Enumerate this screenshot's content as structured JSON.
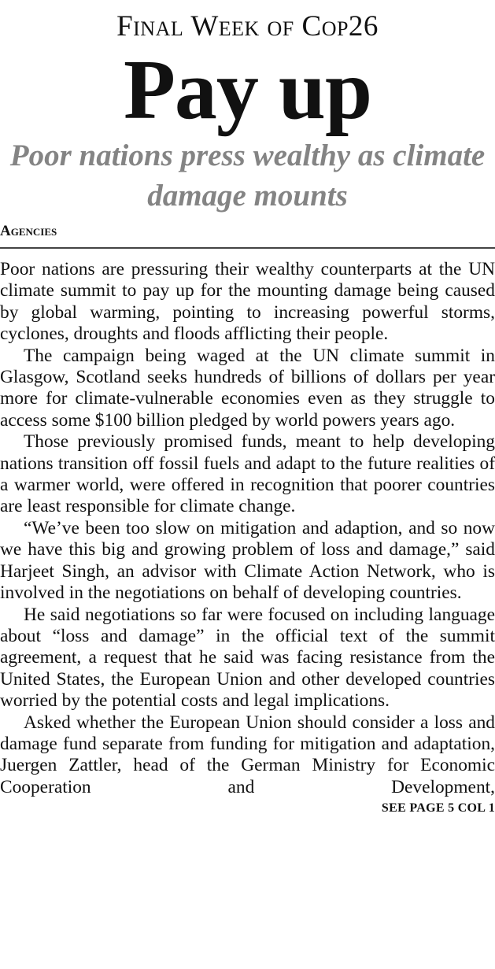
{
  "kicker": "Final Week of Cop26",
  "headline": "Pay up",
  "deck": "Poor nations press wealthy as climate damage mounts",
  "byline": "Agencies",
  "paragraphs": [
    "Poor nations are pressuring their wealthy counterparts at the UN climate summit to pay up for the mounting damage being caused by global warming, pointing to increasing powerful storms, cyclones, droughts and floods afflicting their people.",
    "The campaign being waged at the UN climate summit in Glasgow, Scotland seeks hundreds of billions of dollars per year more for climate-vulnerable economies even as they struggle to access some $100 billion pledged by world powers years ago.",
    "Those previously promised funds, meant to help developing nations transition off fossil fuels and adapt to the future realities of a warmer world, were offered in recognition that poorer countries are least responsible for climate change.",
    "“We’ve been too slow on mitigation and adaption, and so now we have this big and growing problem of loss and damage,” said Harjeet Singh, an advisor with Climate Action Network, who is involved in the negotiations on behalf of developing countries.",
    "He said negotiations so far were focused on including language about “loss and damage” in the official text of the summit agreement, a request that he said was facing resistance from the United States, the European Union and other developed countries worried by the potential costs and legal implications.",
    "Asked whether the European Union should consider a loss and damage fund separate from funding for mitigation and adaptation, Juergen Zattler, head of the German Ministry for Economic Cooperation and Development,"
  ],
  "jump": "SEE PAGE 5 COL 1"
}
